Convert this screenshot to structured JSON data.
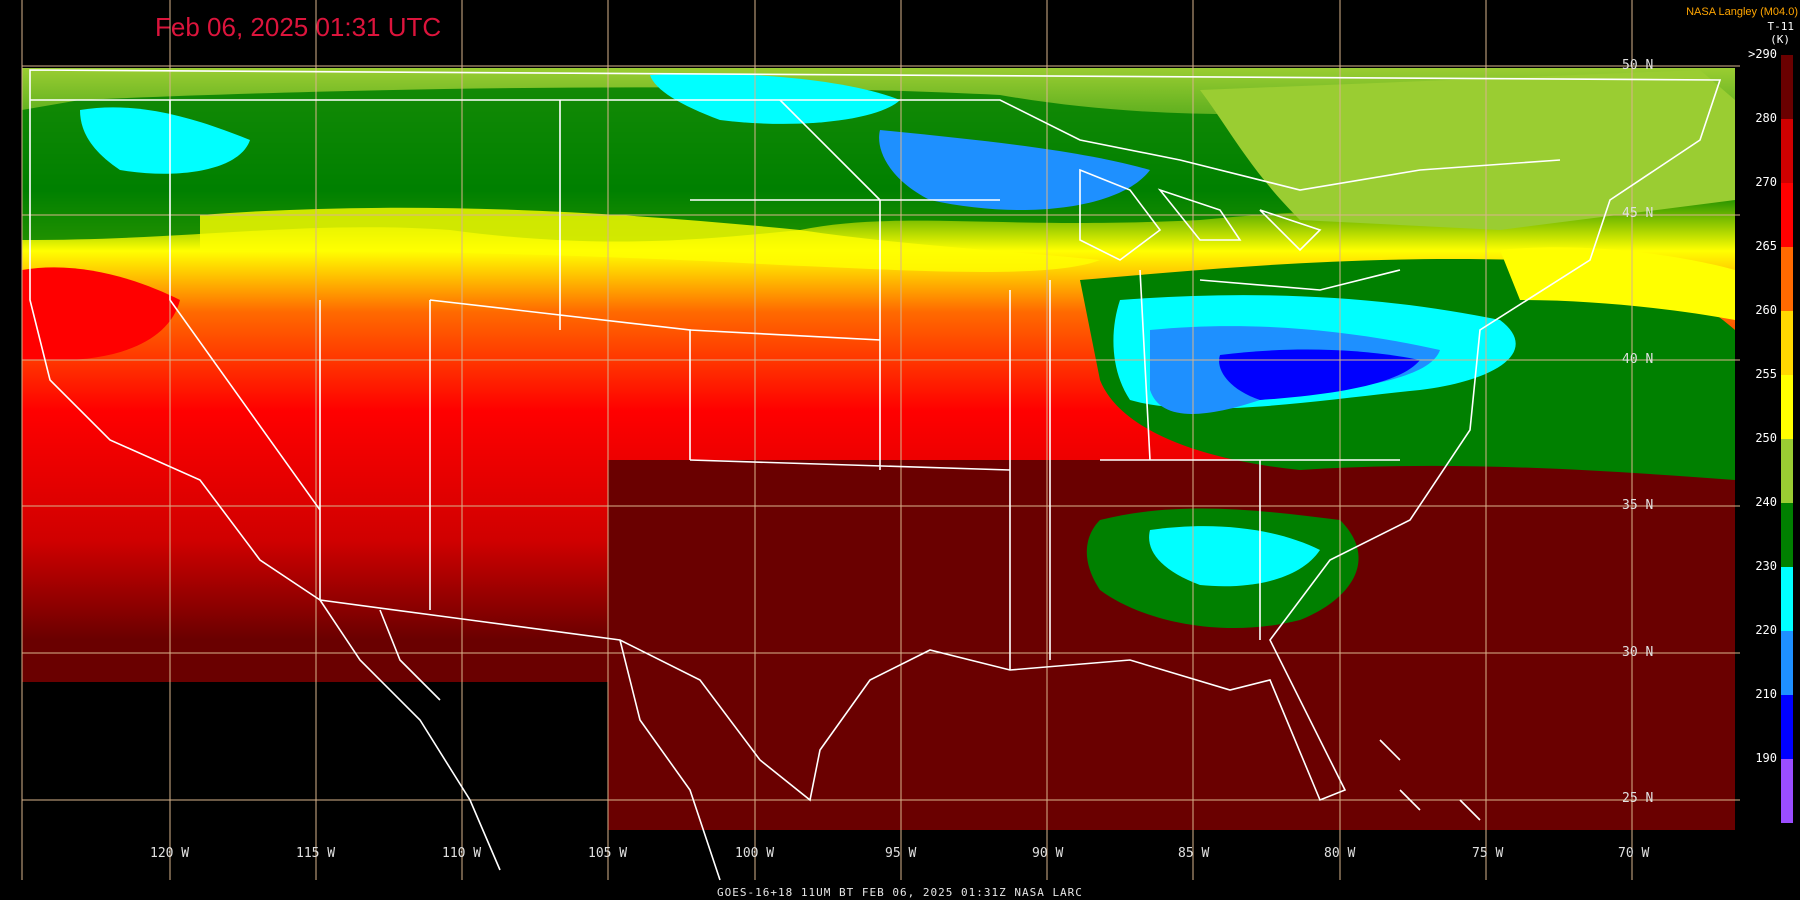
{
  "title": "Feb 06, 2025 01:31 UTC",
  "credit": "NASA Langley (M04.0)",
  "footer": "GOES-16+18  11UM BT   FEB 06, 2025 01:31Z   NASA LARC",
  "legend": {
    "label": "T-11",
    "unit": "(K)",
    "ticks": [
      ">290",
      "280",
      "270",
      "265",
      "260",
      "255",
      "250",
      "240",
      "230",
      "220",
      "210",
      "190"
    ],
    "colors": [
      "#6a0000",
      "#d00000",
      "#ff0000",
      "#ff6a00",
      "#ffd700",
      "#ffff00",
      "#9acd32",
      "#008000",
      "#00ffff",
      "#1e90ff",
      "#0000ff",
      "#9b4dff"
    ]
  },
  "lat_labels": [
    "50 N",
    "45 N",
    "40 N",
    "35 N",
    "30 N",
    "25 N"
  ],
  "lon_labels": [
    "120 W",
    "115 W",
    "110 W",
    "105 W",
    "100 W",
    "95 W",
    "90 W",
    "85 W",
    "80 W",
    "75 W",
    "70 W"
  ],
  "palette": {
    "background": "#000000",
    "gridline": "#d9b38c",
    "outline": "#ffffff"
  }
}
